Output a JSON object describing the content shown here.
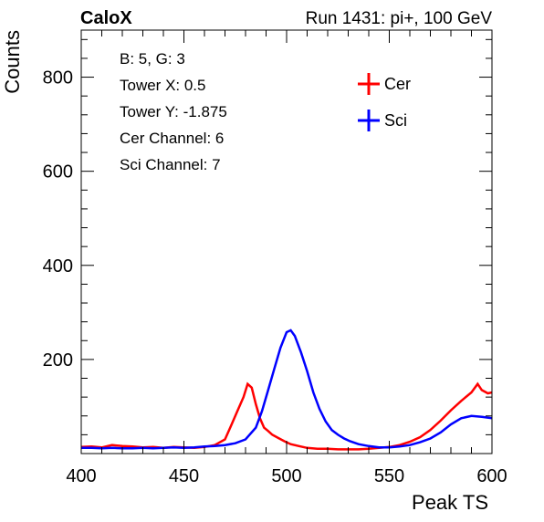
{
  "header": {
    "left": "CaloX",
    "right": "Run 1431: pi+, 100 GeV"
  },
  "info_box": {
    "lines": [
      "B: 5, G: 3",
      "Tower X: 0.5",
      "Tower Y: -1.875",
      "Cer Channel: 6",
      "Sci Channel: 7"
    ]
  },
  "chart_data": {
    "type": "line",
    "title": "",
    "xlabel": "Peak TS",
    "ylabel": "Counts",
    "xlim": [
      400,
      600
    ],
    "ylim": [
      0,
      900
    ],
    "x_ticks": [
      400,
      450,
      500,
      550,
      600
    ],
    "y_ticks": [
      200,
      400,
      600,
      800
    ],
    "grid": false,
    "legend_position": "top-right",
    "series": [
      {
        "name": "Cer",
        "color": "#ff0000",
        "points": [
          [
            400,
            14
          ],
          [
            405,
            15
          ],
          [
            410,
            13
          ],
          [
            415,
            18
          ],
          [
            420,
            16
          ],
          [
            425,
            15
          ],
          [
            430,
            13
          ],
          [
            435,
            14
          ],
          [
            440,
            12
          ],
          [
            445,
            14
          ],
          [
            450,
            13
          ],
          [
            455,
            12
          ],
          [
            460,
            14
          ],
          [
            465,
            18
          ],
          [
            470,
            30
          ],
          [
            473,
            60
          ],
          [
            476,
            90
          ],
          [
            479,
            120
          ],
          [
            481,
            148
          ],
          [
            483,
            140
          ],
          [
            485,
            105
          ],
          [
            487,
            75
          ],
          [
            489,
            55
          ],
          [
            491,
            48
          ],
          [
            493,
            40
          ],
          [
            496,
            33
          ],
          [
            499,
            26
          ],
          [
            502,
            20
          ],
          [
            506,
            16
          ],
          [
            510,
            12
          ],
          [
            515,
            10
          ],
          [
            520,
            10
          ],
          [
            525,
            9
          ],
          [
            530,
            9
          ],
          [
            535,
            9
          ],
          [
            540,
            10
          ],
          [
            545,
            12
          ],
          [
            550,
            14
          ],
          [
            555,
            18
          ],
          [
            560,
            25
          ],
          [
            565,
            35
          ],
          [
            570,
            50
          ],
          [
            575,
            70
          ],
          [
            580,
            92
          ],
          [
            585,
            112
          ],
          [
            590,
            130
          ],
          [
            593,
            148
          ],
          [
            595,
            135
          ],
          [
            598,
            128
          ],
          [
            600,
            130
          ]
        ]
      },
      {
        "name": "Sci",
        "color": "#0000ff",
        "points": [
          [
            400,
            12
          ],
          [
            405,
            12
          ],
          [
            410,
            11
          ],
          [
            415,
            12
          ],
          [
            420,
            11
          ],
          [
            425,
            11
          ],
          [
            430,
            12
          ],
          [
            435,
            11
          ],
          [
            440,
            12
          ],
          [
            445,
            13
          ],
          [
            450,
            12
          ],
          [
            455,
            13
          ],
          [
            460,
            15
          ],
          [
            465,
            16
          ],
          [
            470,
            18
          ],
          [
            475,
            22
          ],
          [
            480,
            30
          ],
          [
            485,
            55
          ],
          [
            488,
            90
          ],
          [
            491,
            135
          ],
          [
            494,
            180
          ],
          [
            497,
            225
          ],
          [
            500,
            258
          ],
          [
            502,
            262
          ],
          [
            504,
            250
          ],
          [
            507,
            215
          ],
          [
            510,
            175
          ],
          [
            513,
            130
          ],
          [
            516,
            95
          ],
          [
            519,
            68
          ],
          [
            522,
            50
          ],
          [
            525,
            40
          ],
          [
            528,
            32
          ],
          [
            531,
            26
          ],
          [
            535,
            20
          ],
          [
            540,
            16
          ],
          [
            545,
            13
          ],
          [
            550,
            13
          ],
          [
            555,
            15
          ],
          [
            560,
            18
          ],
          [
            565,
            24
          ],
          [
            570,
            32
          ],
          [
            575,
            45
          ],
          [
            580,
            62
          ],
          [
            585,
            75
          ],
          [
            590,
            80
          ],
          [
            595,
            78
          ],
          [
            600,
            75
          ]
        ]
      }
    ]
  }
}
